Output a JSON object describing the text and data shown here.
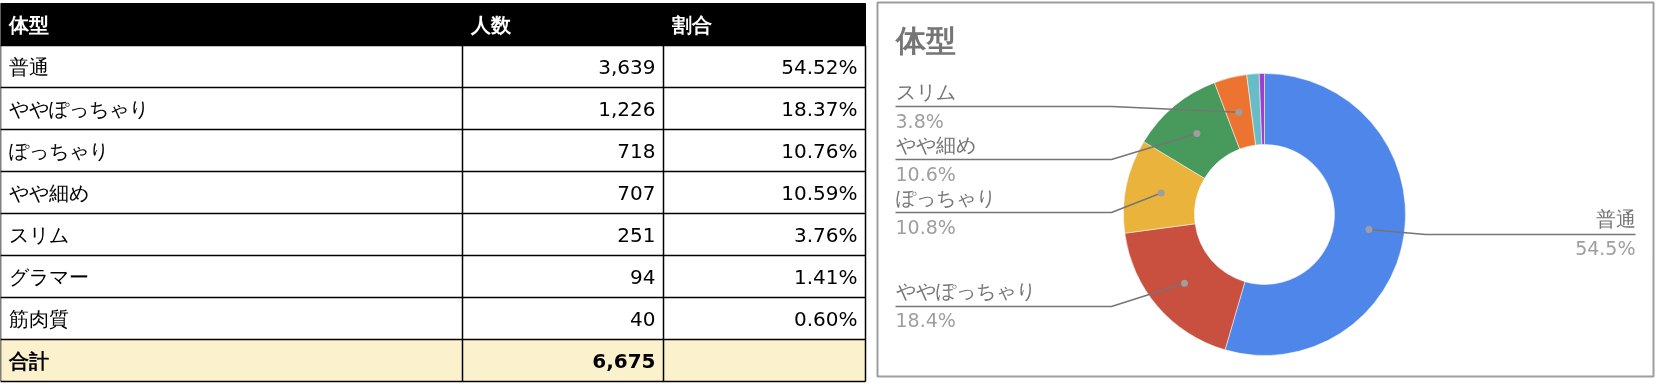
{
  "chart_data": [
    {
      "type": "other",
      "categories": [
        "普通",
        "ややぽっちゃり",
        "ぽっちゃり",
        "やや細め",
        "スリム",
        "グラマー",
        "筋肉質"
      ],
      "series": [
        {
          "name": "人数",
          "values": [
            3639,
            1226,
            718,
            707,
            251,
            94,
            40
          ],
          "value_labels": [
            "3,639",
            "1,226",
            "718",
            "707",
            "251",
            "94",
            "40"
          ]
        },
        {
          "name": "割合",
          "values": [
            54.52,
            18.37,
            10.76,
            10.59,
            3.76,
            1.41,
            0.6
          ],
          "value_labels": [
            "54.52%",
            "18.37%",
            "10.76%",
            "10.59%",
            "3.76%",
            "1.41%",
            "0.60%"
          ]
        }
      ],
      "annotations": [
        "体型",
        "合計",
        "6,675"
      ]
    },
    {
      "type": "donut",
      "title": "体型",
      "categories": [
        "普通",
        "ややぽっちゃり",
        "ぽっちゃり",
        "やや細め",
        "スリム",
        null,
        null
      ],
      "values": [
        54.52,
        18.37,
        10.76,
        10.59,
        3.76,
        1.41,
        0.6
      ],
      "colors": [
        "#4f86e9",
        "#c94f3e",
        "#e9b33c",
        "#47995c",
        "#ec7430",
        "#68bcc6",
        "#9b3fd0"
      ],
      "value_labels": [
        "54.5%",
        "18.4%",
        "10.8%",
        "10.6%",
        "3.8%",
        null,
        null
      ]
    }
  ]
}
